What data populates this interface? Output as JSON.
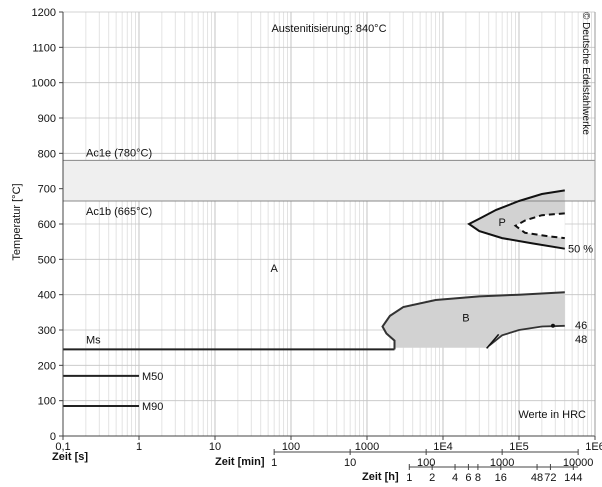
{
  "chart_data": {
    "type": "line",
    "title": "Austenitisierung: 840°C",
    "ylabel": "Temperatur [°C]",
    "ylim": [
      0,
      1200
    ],
    "y_ticks": [
      0,
      100,
      200,
      300,
      400,
      500,
      600,
      700,
      800,
      900,
      1000,
      1100,
      1200
    ],
    "x_scale": "log",
    "xlim_seconds": [
      0.1,
      1000000
    ],
    "grid": true,
    "x_axes": {
      "seconds": {
        "label": "Zeit [s]",
        "ticks": [
          {
            "value": 0.1,
            "label": "0,1"
          },
          {
            "value": 1,
            "label": "1"
          },
          {
            "value": 10,
            "label": "10"
          },
          {
            "value": 100,
            "label": "100"
          },
          {
            "value": 1000,
            "label": "1000"
          },
          {
            "value": 10000,
            "label": "1E4"
          },
          {
            "value": 100000,
            "label": "1E5"
          },
          {
            "value": 1000000,
            "label": "1E6"
          }
        ]
      },
      "minutes": {
        "label": "Zeit [min]",
        "ticks": [
          {
            "value": 1,
            "label": "1"
          },
          {
            "value": 10,
            "label": "10"
          },
          {
            "value": 100,
            "label": "100"
          },
          {
            "value": 1000,
            "label": "1000"
          },
          {
            "value": 10000,
            "label": "10000"
          }
        ]
      },
      "hours": {
        "label": "Zeit [h]",
        "ticks": [
          {
            "value": 1,
            "label": "1"
          },
          {
            "value": 2,
            "label": "2"
          },
          {
            "value": 4,
            "label": "4"
          },
          {
            "value": 6,
            "label": "6"
          },
          {
            "value": 8,
            "label": "8"
          },
          {
            "value": 16,
            "label": "16"
          },
          {
            "value": 48,
            "label": "48"
          },
          {
            "value": 72,
            "label": "72"
          },
          {
            "value": 144,
            "label": "144"
          }
        ]
      }
    },
    "reference_lines": [
      {
        "label": "Ac1e (780°C)",
        "temperature": 780
      },
      {
        "label": "Ac1b (665°C)",
        "temperature": 665
      },
      {
        "label": "Ms",
        "temperature": 245,
        "x_end_seconds": 2300
      }
    ],
    "martensite_lines": [
      {
        "label": "M50",
        "temperature": 170,
        "x_start_seconds": 0.1,
        "x_end_seconds": 1
      },
      {
        "label": "M90",
        "temperature": 85,
        "x_start_seconds": 0.1,
        "x_end_seconds": 1
      }
    ],
    "regions": [
      {
        "label": "A",
        "x_seconds": 60,
        "temperature": 475
      },
      {
        "label": "P",
        "x_seconds": 60000,
        "temperature": 605
      },
      {
        "label": "B",
        "x_seconds": 20000,
        "temperature": 335
      }
    ],
    "curves": {
      "pearlite_start": [
        [
          400000,
          695
        ],
        [
          200000,
          685
        ],
        [
          100000,
          665
        ],
        [
          50000,
          640
        ],
        [
          30000,
          615
        ],
        [
          22000,
          600
        ],
        [
          30000,
          580
        ],
        [
          60000,
          560
        ],
        [
          150000,
          545
        ],
        [
          400000,
          530
        ]
      ],
      "pearlite_50": [
        [
          400000,
          630
        ],
        [
          200000,
          625
        ],
        [
          120000,
          610
        ],
        [
          90000,
          595
        ],
        [
          120000,
          575
        ],
        [
          250000,
          565
        ],
        [
          400000,
          560
        ]
      ],
      "bainite_start": [
        [
          2300,
          250
        ],
        [
          2300,
          270
        ],
        [
          1800,
          290
        ],
        [
          1600,
          310
        ],
        [
          2000,
          340
        ],
        [
          3000,
          365
        ],
        [
          8000,
          385
        ],
        [
          30000,
          395
        ],
        [
          100000,
          400
        ],
        [
          400000,
          407
        ]
      ],
      "bainite_end": [
        [
          40000,
          255
        ],
        [
          60000,
          285
        ],
        [
          100000,
          300
        ],
        [
          200000,
          310
        ],
        [
          400000,
          312
        ]
      ]
    },
    "hardness": {
      "label": "Werte in HRC",
      "values": [
        {
          "value": "46",
          "x_seconds": 280000,
          "temperature": 312
        },
        {
          "value": "48",
          "x_seconds": 45000,
          "temperature": 265
        }
      ],
      "percent_label": "50 %"
    }
  },
  "watermark": "© Deutsche Edelstahlwerke"
}
